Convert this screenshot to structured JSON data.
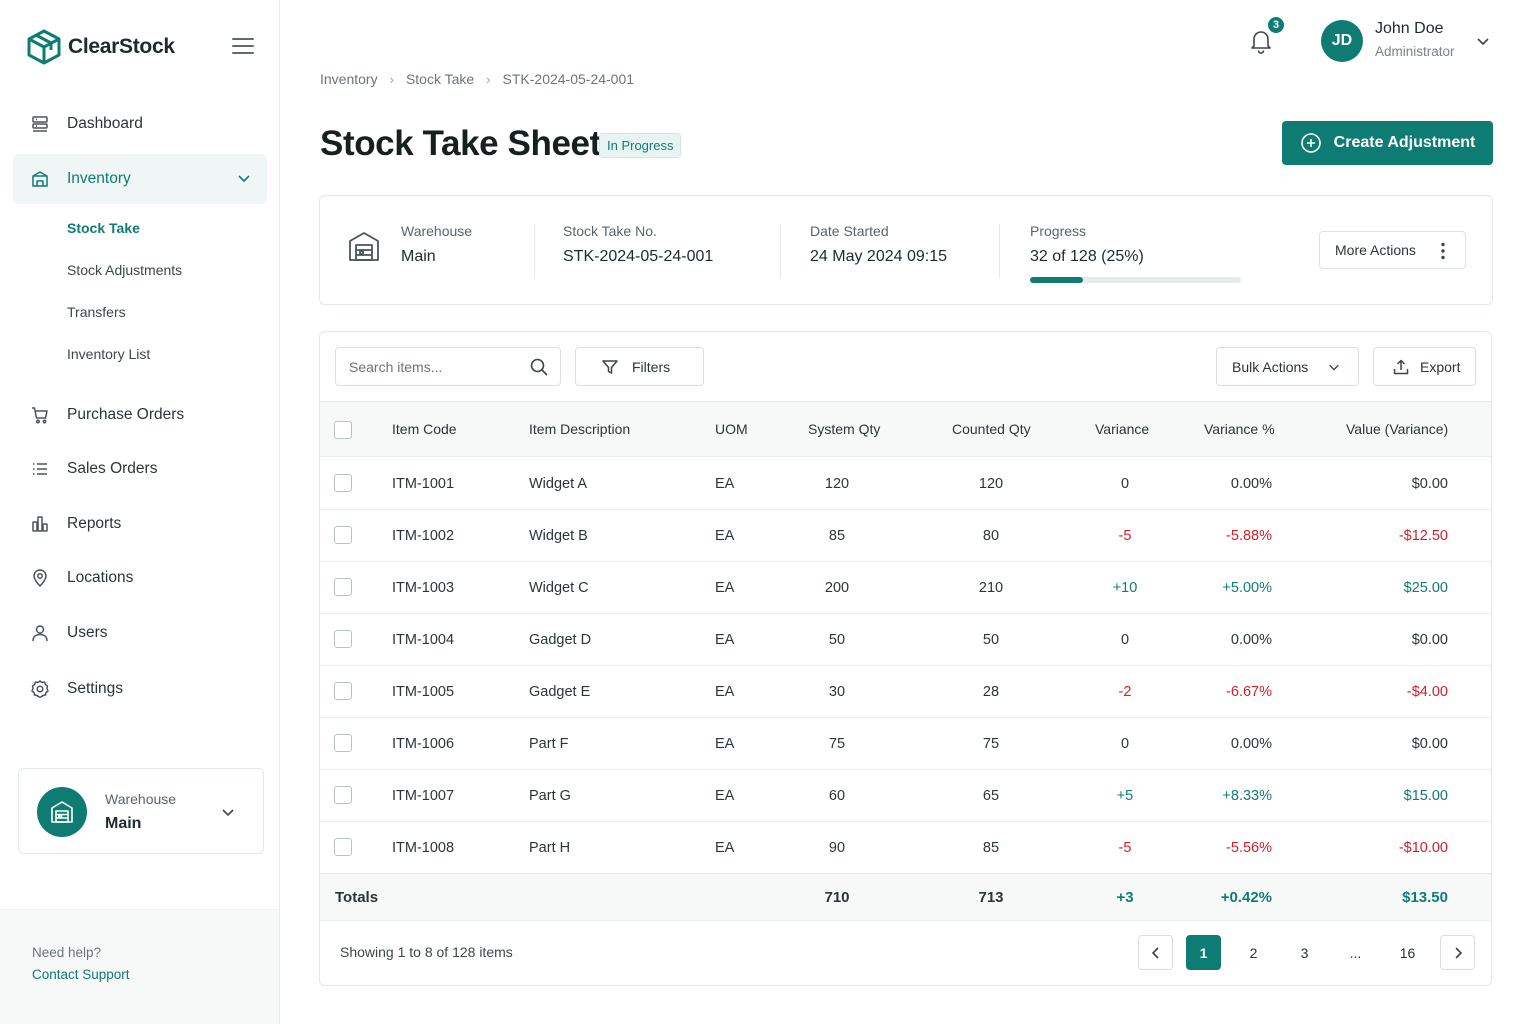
{
  "brand": {
    "name": "ClearStock"
  },
  "sidebar": {
    "items": [
      {
        "label": "Dashboard",
        "icon": "dashboard-icon"
      },
      {
        "label": "Inventory",
        "icon": "inventory-box-icon"
      },
      {
        "label": "Purchase Orders",
        "icon": "cart-icon"
      },
      {
        "label": "Sales Orders",
        "icon": "list-icon"
      },
      {
        "label": "Reports",
        "icon": "bar-chart-icon"
      },
      {
        "label": "Locations",
        "icon": "location-pin-icon"
      },
      {
        "label": "Users",
        "icon": "user-icon"
      },
      {
        "label": "Settings",
        "icon": "gear-icon"
      }
    ],
    "inventory_sub": [
      "Stock Take",
      "Stock Adjustments",
      "Transfers",
      "Inventory List"
    ],
    "warehouse": {
      "label": "Warehouse",
      "value": "Main"
    },
    "help": {
      "question": "Need help?",
      "link": "Contact Support"
    }
  },
  "topbar": {
    "notification_count": "3",
    "user": {
      "initials": "JD",
      "name": "John Doe",
      "role": "Administrator"
    }
  },
  "breadcrumb": [
    "Inventory",
    "Stock Take",
    "STK-2024-05-24-001"
  ],
  "header": {
    "title": "Stock Take Sheet",
    "status": "In Progress",
    "create_button": "Create Adjustment"
  },
  "info": {
    "warehouse_label": "Warehouse",
    "warehouse_value": "Main",
    "number_label": "Stock Take No.",
    "number_value": "STK-2024-05-24-001",
    "date_label": "Date Started",
    "date_value": "24 May 2024 09:15",
    "progress_label": "Progress",
    "progress_value": "32 of 128 (25%)",
    "progress_fraction": 0.25,
    "more_actions": "More Actions"
  },
  "toolbar": {
    "search_placeholder": "Search items...",
    "filters": "Filters",
    "bulk_actions": "Bulk Actions",
    "export": "Export"
  },
  "table": {
    "columns": [
      "Item Code",
      "Item Description",
      "UOM",
      "System Qty",
      "Counted Qty",
      "Variance",
      "Variance %",
      "Value (Variance)"
    ],
    "rows": [
      {
        "code": "ITM-1001",
        "desc": "Widget A",
        "uom": "EA",
        "system": "120",
        "counted": "120",
        "variance": "0",
        "variance_pct": "0.00%",
        "value": "$0.00",
        "trend": "zero"
      },
      {
        "code": "ITM-1002",
        "desc": "Widget B",
        "uom": "EA",
        "system": "85",
        "counted": "80",
        "variance": "-5",
        "variance_pct": "-5.88%",
        "value": "-$12.50",
        "trend": "neg"
      },
      {
        "code": "ITM-1003",
        "desc": "Widget C",
        "uom": "EA",
        "system": "200",
        "counted": "210",
        "variance": "+10",
        "variance_pct": "+5.00%",
        "value": "$25.00",
        "trend": "pos"
      },
      {
        "code": "ITM-1004",
        "desc": "Gadget D",
        "uom": "EA",
        "system": "50",
        "counted": "50",
        "variance": "0",
        "variance_pct": "0.00%",
        "value": "$0.00",
        "trend": "zero"
      },
      {
        "code": "ITM-1005",
        "desc": "Gadget E",
        "uom": "EA",
        "system": "30",
        "counted": "28",
        "variance": "-2",
        "variance_pct": "-6.67%",
        "value": "-$4.00",
        "trend": "neg"
      },
      {
        "code": "ITM-1006",
        "desc": "Part F",
        "uom": "EA",
        "system": "75",
        "counted": "75",
        "variance": "0",
        "variance_pct": "0.00%",
        "value": "$0.00",
        "trend": "zero"
      },
      {
        "code": "ITM-1007",
        "desc": "Part G",
        "uom": "EA",
        "system": "60",
        "counted": "65",
        "variance": "+5",
        "variance_pct": "+8.33%",
        "value": "$15.00",
        "trend": "pos"
      },
      {
        "code": "ITM-1008",
        "desc": "Part H",
        "uom": "EA",
        "system": "90",
        "counted": "85",
        "variance": "-5",
        "variance_pct": "-5.56%",
        "value": "-$10.00",
        "trend": "neg"
      }
    ],
    "totals": {
      "label": "Totals",
      "system": "710",
      "counted": "713",
      "variance": "+3",
      "variance_pct": "+0.42%",
      "value": "$13.50"
    }
  },
  "pagination": {
    "summary": "Showing 1 to 8 of 128 items",
    "pages": [
      "1",
      "2",
      "3",
      "...",
      "16"
    ],
    "current": "1"
  },
  "colors": {
    "accent": "#0f7c74",
    "negative": "#d11f2a",
    "positive": "#0f7c74"
  }
}
